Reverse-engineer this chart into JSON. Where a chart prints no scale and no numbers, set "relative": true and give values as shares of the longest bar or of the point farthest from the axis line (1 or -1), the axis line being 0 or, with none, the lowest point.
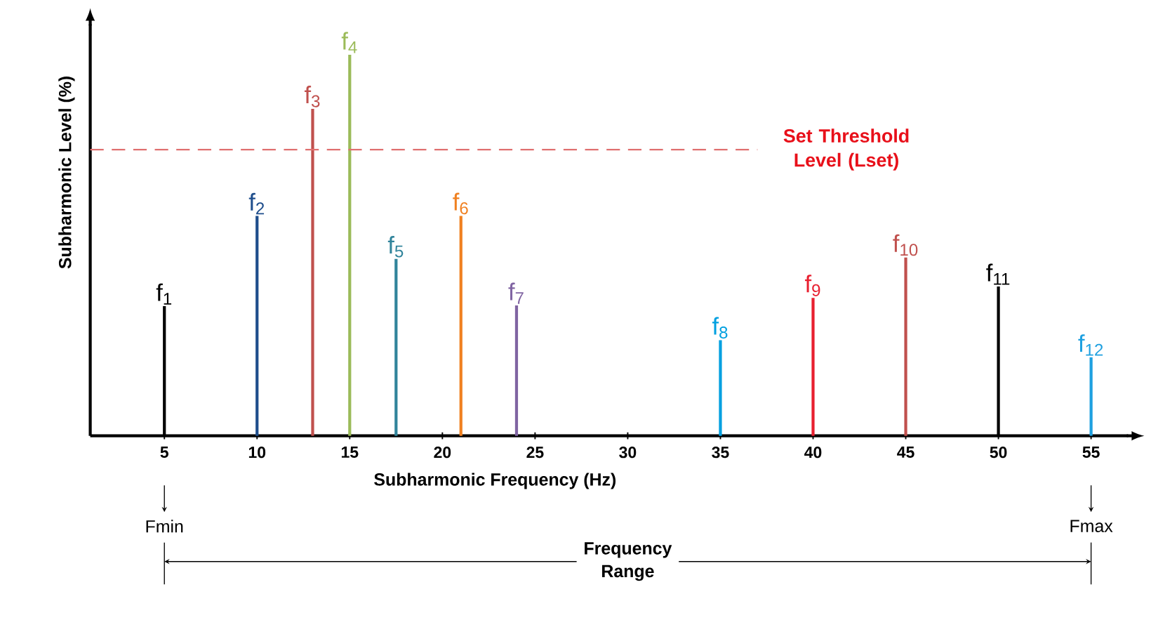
{
  "chart_data": {
    "type": "bar",
    "relative": true,
    "xlabel": "Subharmonic Frequency (Hz)",
    "ylabel": "Subharmonic Level (%)",
    "xlim": [
      1,
      57
    ],
    "xticks": [
      5,
      10,
      15,
      20,
      25,
      30,
      35,
      40,
      45,
      50,
      55
    ],
    "tick_labels": "x",
    "series": [
      {
        "name": "f$_{1}$",
        "color": "#000000",
        "x": [
          5
        ],
        "values": [
          0.34
        ]
      },
      {
        "name": "f$_{2}$",
        "color": "#1f4e8c",
        "x": [
          10
        ],
        "values": [
          0.577
        ]
      },
      {
        "name": "f$_{3}$",
        "color": "#c0504d",
        "x": [
          13
        ],
        "values": [
          0.858
        ]
      },
      {
        "name": "f$_{4}$",
        "color": "#9bbb59",
        "x": [
          15
        ],
        "values": [
          1
        ]
      },
      {
        "name": "f$_{5}$",
        "color": "#31849b",
        "x": [
          17.5
        ],
        "values": [
          0.464
        ]
      },
      {
        "name": "f$_{6}$",
        "color": "#f08020",
        "x": [
          21
        ],
        "values": [
          0.577
        ]
      },
      {
        "name": "f$_{7}$",
        "color": "#8064a2",
        "x": [
          24
        ],
        "values": [
          0.342
        ]
      },
      {
        "name": "f$_{8}$",
        "color": "#00a0e0",
        "x": [
          35
        ],
        "values": [
          0.251
        ]
      },
      {
        "name": "f$_{9}$",
        "color": "#e82030",
        "x": [
          40
        ],
        "values": [
          0.362
        ]
      },
      {
        "name": "f$_{10}$",
        "color": "#c0504d",
        "x": [
          45
        ],
        "values": [
          0.468
        ]
      },
      {
        "name": "f$_{11}$",
        "color": "#000000",
        "x": [
          50
        ],
        "values": [
          0.392
        ]
      },
      {
        "name": "f$_{12}$",
        "color": "#1ea0e0",
        "x": [
          55
        ],
        "values": [
          0.206
        ]
      }
    ],
    "ref_lines": [
      {
        "axis": "y",
        "value": 0.751,
        "label": "Set Threshold Level (Lset)",
        "color": "#e07070",
        "line_style": "dashed"
      }
    ],
    "annotations": [
      {
        "text": "Fmin",
        "x": 5
      },
      {
        "text": "Fmax",
        "x": 55
      },
      "Frequency Range"
    ]
  }
}
